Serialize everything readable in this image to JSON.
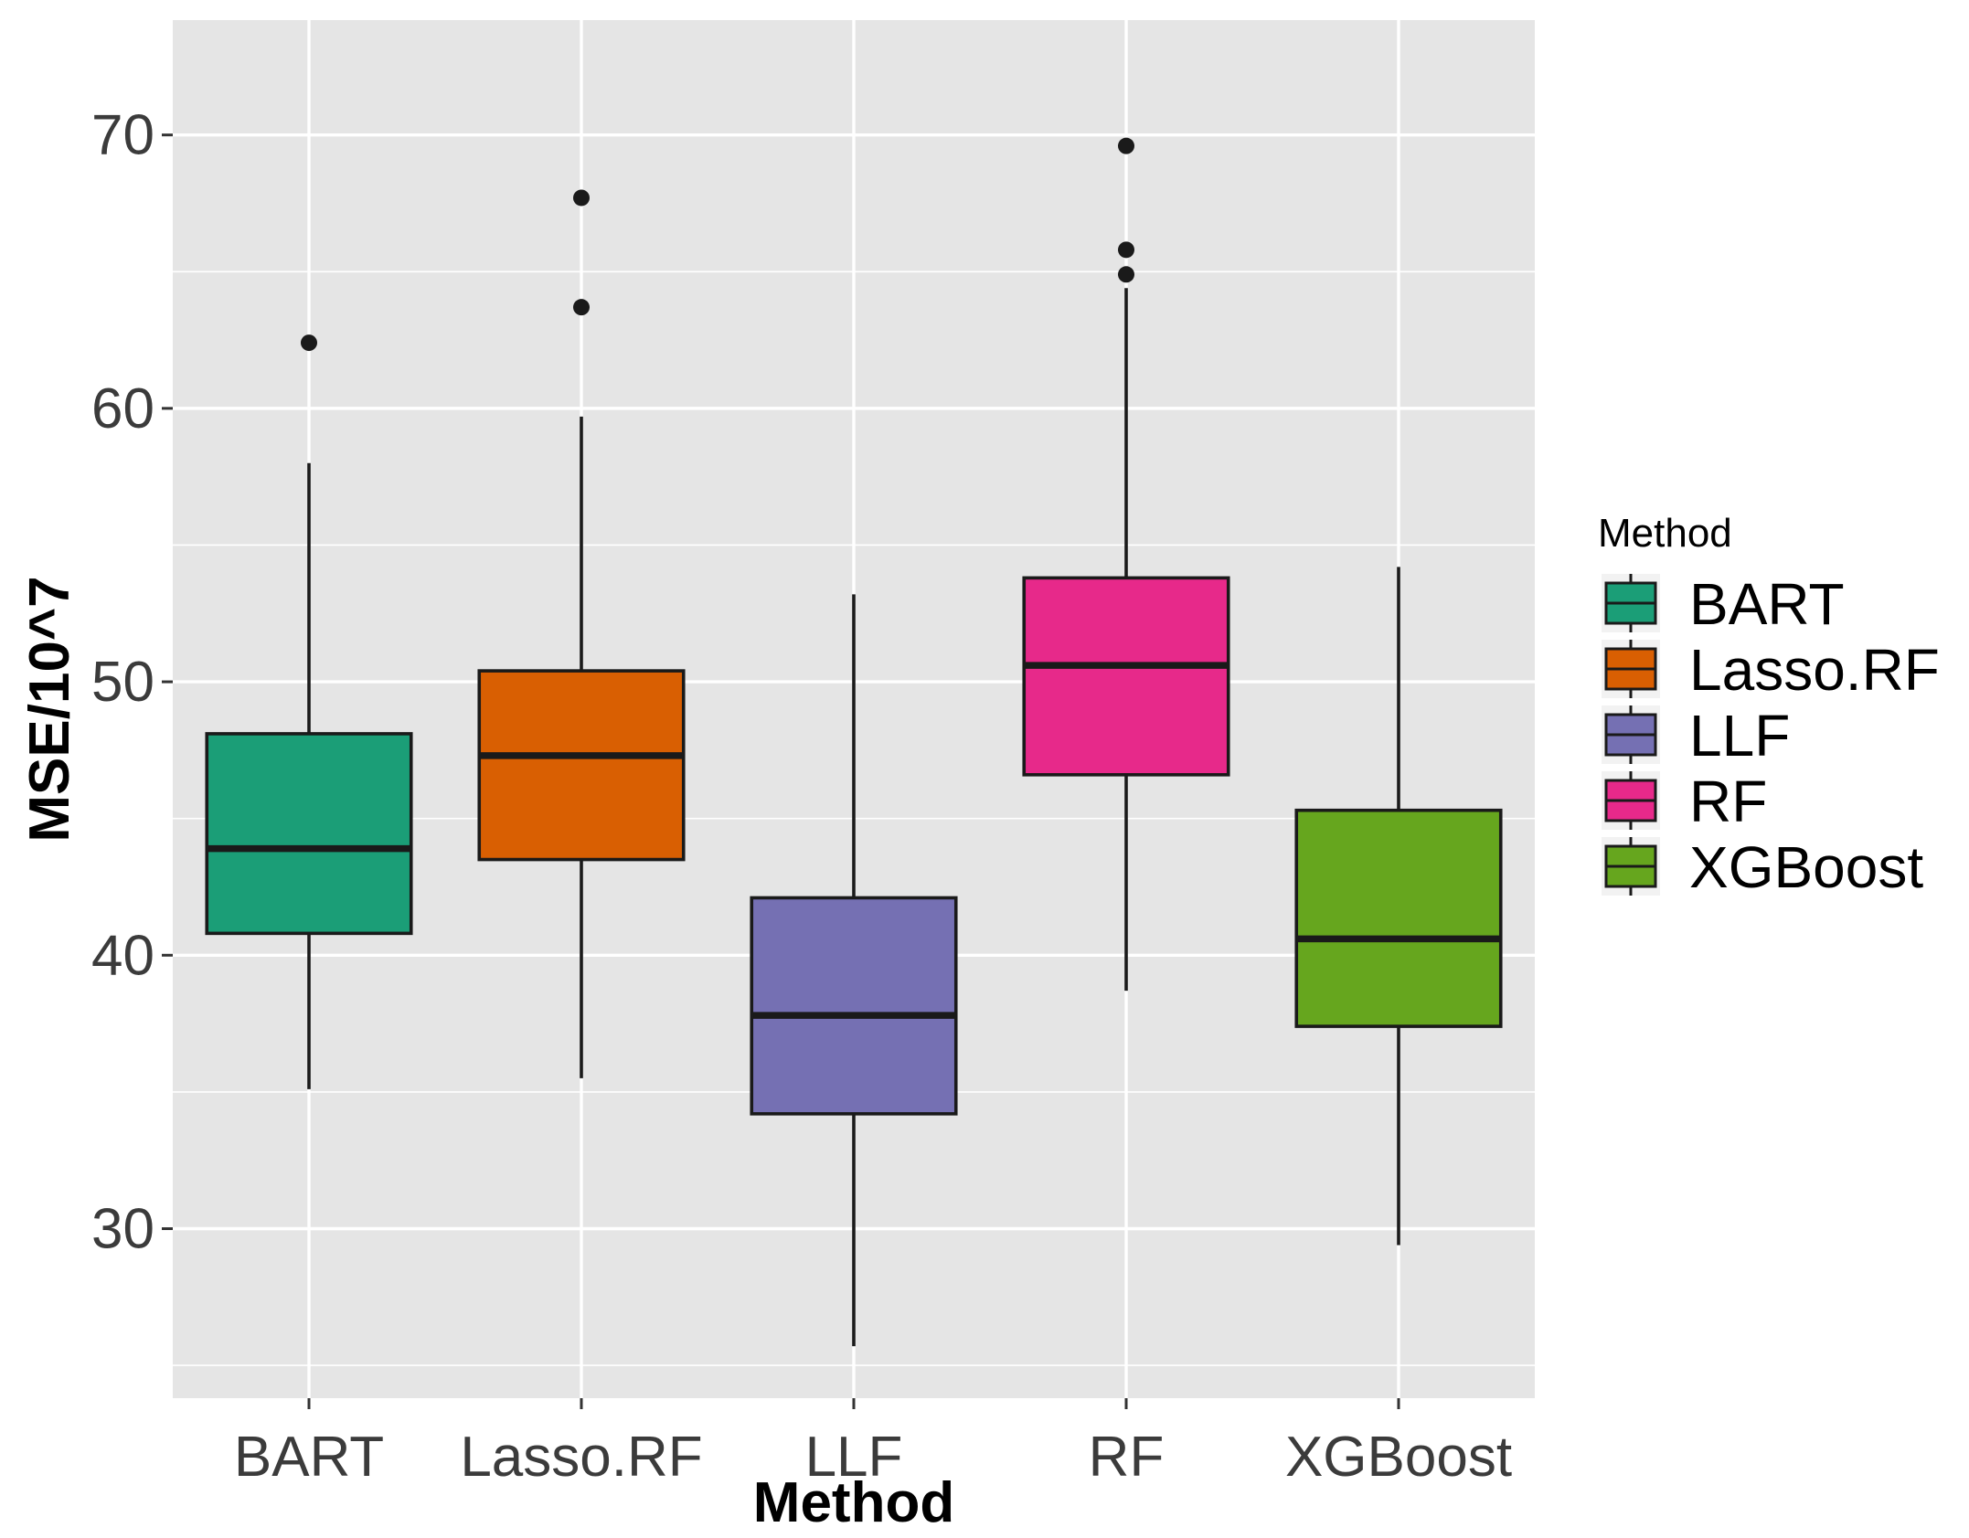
{
  "chart_data": {
    "type": "box",
    "title": "",
    "xlabel": "Method",
    "ylabel": "MSE/10^7",
    "ylim": [
      23.8,
      74.2
    ],
    "yticks": [
      30,
      40,
      50,
      60,
      70
    ],
    "categories": [
      "BART",
      "Lasso.RF",
      "LLF",
      "RF",
      "XGBoost"
    ],
    "grid": true,
    "legend": {
      "title": "Method",
      "placement": "right",
      "entries": [
        "BART",
        "Lasso.RF",
        "LLF",
        "RF",
        "XGBoost"
      ]
    },
    "series": [
      {
        "name": "BART",
        "color": "#1b9e77",
        "min": 35.1,
        "q1": 40.8,
        "median": 43.9,
        "q3": 48.1,
        "max": 58.0,
        "outliers": [
          62.4
        ]
      },
      {
        "name": "Lasso.RF",
        "color": "#d95f02",
        "min": 35.5,
        "q1": 43.5,
        "median": 47.3,
        "q3": 50.4,
        "max": 59.7,
        "outliers": [
          63.7,
          67.7
        ]
      },
      {
        "name": "LLF",
        "color": "#7570b3",
        "min": 25.7,
        "q1": 34.2,
        "median": 37.8,
        "q3": 42.1,
        "max": 53.2,
        "outliers": []
      },
      {
        "name": "RF",
        "color": "#e7298a",
        "min": 38.7,
        "q1": 46.6,
        "median": 50.6,
        "q3": 53.8,
        "max": 64.4,
        "outliers": [
          64.9,
          65.8,
          69.6
        ]
      },
      {
        "name": "XGBoost",
        "color": "#66a61e",
        "min": 29.4,
        "q1": 37.4,
        "median": 40.6,
        "q3": 45.3,
        "max": 54.2,
        "outliers": []
      }
    ]
  }
}
